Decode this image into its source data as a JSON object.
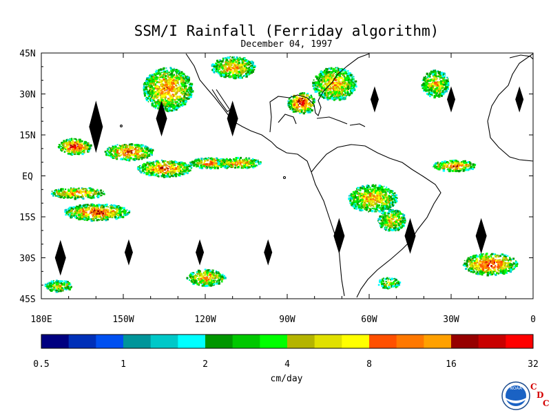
{
  "title": "SSM/I Rainfall (Ferriday algorithm)",
  "subtitle": "December 04, 1997",
  "map": {
    "lat_ticks": [
      {
        "lat": 45,
        "label": "45N"
      },
      {
        "lat": 30,
        "label": "30N"
      },
      {
        "lat": 15,
        "label": "15N"
      },
      {
        "lat": 0,
        "label": "EQ"
      },
      {
        "lat": -15,
        "label": "15S"
      },
      {
        "lat": -30,
        "label": "30S"
      },
      {
        "lat": -45,
        "label": "45S"
      }
    ],
    "lon_ticks": [
      {
        "lon": 180,
        "label": "180E"
      },
      {
        "lon": 210,
        "label": "150W"
      },
      {
        "lon": 240,
        "label": "120W"
      },
      {
        "lon": 270,
        "label": "90W"
      },
      {
        "lon": 300,
        "label": "60W"
      },
      {
        "lon": 330,
        "label": "30W"
      },
      {
        "lon": 360,
        "label": "0"
      }
    ],
    "lon_range": [
      180,
      360
    ],
    "lat_range": [
      -45,
      45
    ],
    "gap_markers": [
      {
        "lon": 200,
        "lat": 18,
        "size": "large"
      },
      {
        "lon": 224,
        "lat": 21,
        "size": "medium"
      },
      {
        "lon": 250,
        "lat": 21,
        "size": "medium"
      },
      {
        "lon": 302,
        "lat": 28,
        "size": "small"
      },
      {
        "lon": 330,
        "lat": 28,
        "size": "small"
      },
      {
        "lon": 355,
        "lat": 28,
        "size": "small"
      },
      {
        "lon": 187,
        "lat": -30,
        "size": "medium"
      },
      {
        "lon": 212,
        "lat": -28,
        "size": "small"
      },
      {
        "lon": 238,
        "lat": -28,
        "size": "small"
      },
      {
        "lon": 263,
        "lat": -28,
        "size": "small"
      },
      {
        "lon": 289,
        "lat": -22,
        "size": "medium"
      },
      {
        "lon": 315,
        "lat": -22,
        "size": "medium"
      },
      {
        "lon": 341,
        "lat": -22,
        "size": "medium"
      }
    ],
    "rain_regions": [
      {
        "lon": 192,
        "lat": 11,
        "rx": 6,
        "ry": 3,
        "intensity": 1.0
      },
      {
        "lon": 212,
        "lat": 9,
        "rx": 9,
        "ry": 3,
        "intensity": 0.8
      },
      {
        "lon": 225,
        "lat": 3,
        "rx": 10,
        "ry": 3,
        "intensity": 0.8
      },
      {
        "lon": 242,
        "lat": 5,
        "rx": 8,
        "ry": 2,
        "intensity": 0.7
      },
      {
        "lon": 252,
        "lat": 5,
        "rx": 8,
        "ry": 2,
        "intensity": 0.7
      },
      {
        "lon": 193,
        "lat": -6,
        "rx": 10,
        "ry": 2,
        "intensity": 0.7
      },
      {
        "lon": 200,
        "lat": -13,
        "rx": 12,
        "ry": 3,
        "intensity": 0.8
      },
      {
        "lon": 226,
        "lat": 32,
        "rx": 9,
        "ry": 8,
        "intensity": 0.7
      },
      {
        "lon": 250,
        "lat": 40,
        "rx": 8,
        "ry": 4,
        "intensity": 0.6
      },
      {
        "lon": 275,
        "lat": 27,
        "rx": 5,
        "ry": 4,
        "intensity": 1.0
      },
      {
        "lon": 287,
        "lat": 34,
        "rx": 8,
        "ry": 6,
        "intensity": 0.6
      },
      {
        "lon": 324,
        "lat": 34,
        "rx": 5,
        "ry": 5,
        "intensity": 0.5
      },
      {
        "lon": 331,
        "lat": 4,
        "rx": 8,
        "ry": 2,
        "intensity": 0.8
      },
      {
        "lon": 301,
        "lat": -8,
        "rx": 9,
        "ry": 5,
        "intensity": 0.6
      },
      {
        "lon": 308,
        "lat": -16,
        "rx": 5,
        "ry": 4,
        "intensity": 0.5
      },
      {
        "lon": 240,
        "lat": -37,
        "rx": 7,
        "ry": 3,
        "intensity": 0.6
      },
      {
        "lon": 344,
        "lat": -32,
        "rx": 10,
        "ry": 4,
        "intensity": 0.9
      },
      {
        "lon": 186,
        "lat": -40,
        "rx": 5,
        "ry": 2,
        "intensity": 0.4
      },
      {
        "lon": 307,
        "lat": -39,
        "rx": 4,
        "ry": 2,
        "intensity": 0.4
      }
    ]
  },
  "colorbar": {
    "colors": [
      "#000080",
      "#0030b8",
      "#0050f0",
      "#00959a",
      "#00c8c8",
      "#00ffff",
      "#009600",
      "#00c800",
      "#00ff00",
      "#b4b400",
      "#e0e000",
      "#ffff00",
      "#ff5000",
      "#ff7800",
      "#ffa000",
      "#960000",
      "#c80000",
      "#ff0000"
    ],
    "labels": [
      "0.5",
      "1",
      "2",
      "4",
      "8",
      "16",
      "32"
    ],
    "unit_label": "cm/day"
  },
  "logo": {
    "noaa_text": "NOAA",
    "cdc_letters": [
      "C",
      "D",
      "C"
    ]
  }
}
